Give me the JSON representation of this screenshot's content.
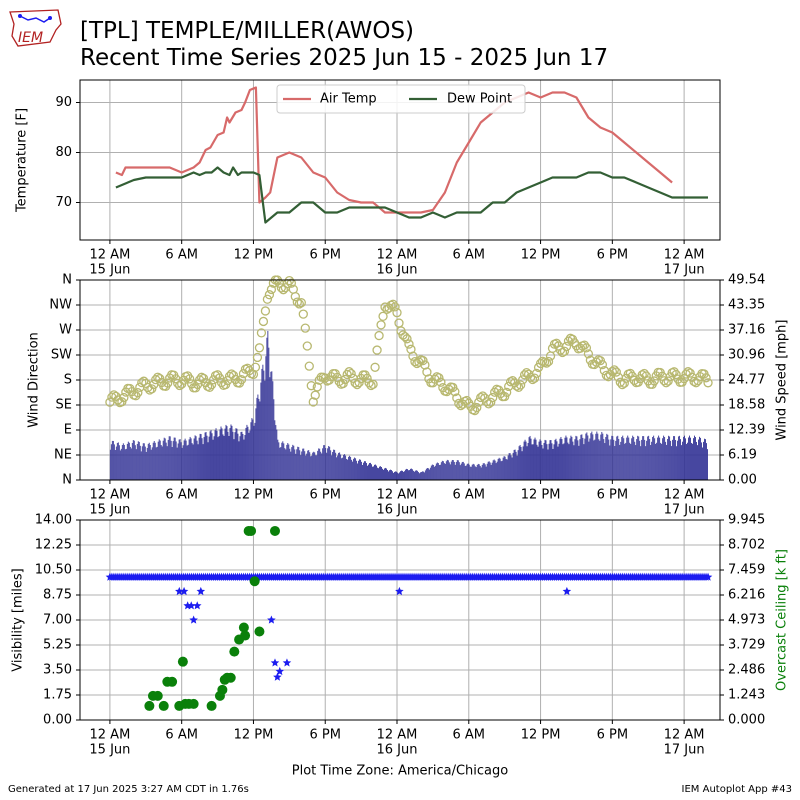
{
  "header": {
    "line1": "[TPL] TEMPLE/MILLER(AWOS)",
    "line2": "Recent Time Series 2025 Jun 15 - 2025 Jun 17",
    "logo_text": "IEM"
  },
  "footer": {
    "left": "Generated at 17 Jun 2025 3:27 AM CDT in 1.76s",
    "right": "IEM Autoplot App #43"
  },
  "colors": {
    "air_temp": "#d76a6a",
    "dew_point": "#335f35",
    "wind_dir_marker": "#b8b870",
    "wind_speed_bar": "#343496",
    "visibility": "#1c1cf0",
    "ceiling": "#0a800a",
    "grid": "#b0b0b0",
    "ceiling_axis_label": "#0a800a"
  },
  "chart_data": [
    {
      "type": "line",
      "ylabel": "Temperature [F]",
      "ylim": [
        62.5,
        94.5
      ],
      "yticks": [
        70,
        80,
        90
      ],
      "xlim": [
        -2.5,
        51
      ],
      "x_units": "hours since 15 Jun 12 AM",
      "xtick_labels": [
        {
          "x": 0,
          "line1": "12 AM",
          "line2": "15 Jun"
        },
        {
          "x": 6,
          "line1": "6 AM",
          "line2": ""
        },
        {
          "x": 12,
          "line1": "12 PM",
          "line2": ""
        },
        {
          "x": 18,
          "line1": "6 PM",
          "line2": ""
        },
        {
          "x": 24,
          "line1": "12 AM",
          "line2": "16 Jun"
        },
        {
          "x": 30,
          "line1": "6 AM",
          "line2": ""
        },
        {
          "x": 36,
          "line1": "12 PM",
          "line2": ""
        },
        {
          "x": 42,
          "line1": "6 PM",
          "line2": ""
        },
        {
          "x": 48,
          "line1": "12 AM",
          "line2": "17 Jun"
        }
      ],
      "grid": true,
      "legend_placement": "top-center",
      "series": [
        {
          "name": "Air Temp",
          "points": [
            [
              0.5,
              76
            ],
            [
              1,
              75.5
            ],
            [
              1.3,
              77
            ],
            [
              2,
              77
            ],
            [
              3,
              77
            ],
            [
              4,
              77
            ],
            [
              5,
              77
            ],
            [
              6,
              76
            ],
            [
              7,
              77
            ],
            [
              7.5,
              78
            ],
            [
              8,
              80.5
            ],
            [
              8.4,
              81
            ],
            [
              9,
              83.5
            ],
            [
              9.5,
              84
            ],
            [
              9.8,
              87
            ],
            [
              10,
              86
            ],
            [
              10.5,
              88
            ],
            [
              11,
              88.5
            ],
            [
              11.3,
              90
            ],
            [
              11.7,
              92.5
            ],
            [
              12.2,
              93
            ],
            [
              12.5,
              70
            ],
            [
              13,
              71
            ],
            [
              13.4,
              72
            ],
            [
              14,
              79
            ],
            [
              15,
              80
            ],
            [
              16,
              79
            ],
            [
              17,
              76
            ],
            [
              18,
              75
            ],
            [
              19,
              72
            ],
            [
              20,
              70.5
            ],
            [
              21,
              70
            ],
            [
              22,
              70
            ],
            [
              23,
              68
            ],
            [
              24,
              68
            ],
            [
              25,
              68
            ],
            [
              26,
              68
            ],
            [
              27,
              68.5
            ],
            [
              28,
              72
            ],
            [
              29,
              78
            ],
            [
              30,
              82
            ],
            [
              31,
              86
            ],
            [
              32,
              88
            ],
            [
              33,
              90
            ],
            [
              34,
              91
            ],
            [
              35,
              92
            ],
            [
              36,
              91
            ],
            [
              37,
              92
            ],
            [
              38,
              92
            ],
            [
              39,
              91
            ],
            [
              40,
              87
            ],
            [
              41,
              85
            ],
            [
              42,
              84
            ],
            [
              43,
              82
            ],
            [
              44,
              80
            ],
            [
              45,
              78
            ],
            [
              46,
              76
            ],
            [
              47,
              74
            ]
          ]
        },
        {
          "name": "Dew Point",
          "points": [
            [
              0.5,
              73
            ],
            [
              1,
              73.5
            ],
            [
              2,
              74.5
            ],
            [
              3,
              75
            ],
            [
              4,
              75
            ],
            [
              5,
              75
            ],
            [
              6,
              75
            ],
            [
              7,
              76
            ],
            [
              7.5,
              75.5
            ],
            [
              8,
              76
            ],
            [
              8.5,
              76
            ],
            [
              9,
              77
            ],
            [
              9.5,
              76
            ],
            [
              10,
              75.5
            ],
            [
              10.3,
              77
            ],
            [
              10.7,
              75.5
            ],
            [
              11,
              76
            ],
            [
              11.3,
              76
            ],
            [
              12,
              76
            ],
            [
              12.5,
              75.5
            ],
            [
              13,
              66
            ],
            [
              14,
              68
            ],
            [
              15,
              68
            ],
            [
              16,
              70
            ],
            [
              17,
              70
            ],
            [
              18,
              68
            ],
            [
              19,
              68
            ],
            [
              20,
              69
            ],
            [
              21,
              69
            ],
            [
              22,
              69
            ],
            [
              23,
              69
            ],
            [
              24,
              68
            ],
            [
              25,
              67
            ],
            [
              26,
              67
            ],
            [
              27,
              68
            ],
            [
              28,
              67
            ],
            [
              29,
              68
            ],
            [
              30,
              68
            ],
            [
              31,
              68
            ],
            [
              32,
              70
            ],
            [
              33,
              70
            ],
            [
              34,
              72
            ],
            [
              35,
              73
            ],
            [
              36,
              74
            ],
            [
              37,
              75
            ],
            [
              38,
              75
            ],
            [
              39,
              75
            ],
            [
              40,
              76
            ],
            [
              41,
              76
            ],
            [
              42,
              75
            ],
            [
              43,
              75
            ],
            [
              44,
              74
            ],
            [
              45,
              73
            ],
            [
              46,
              72
            ],
            [
              47,
              71
            ],
            [
              48,
              71
            ],
            [
              49,
              71
            ],
            [
              50,
              71
            ]
          ]
        }
      ]
    },
    {
      "type": "bar",
      "ylabel": "Wind Direction",
      "y2label": "Wind Speed [mph]",
      "ylim": [
        0,
        360
      ],
      "yticks": [
        {
          "v": 0,
          "label": "N"
        },
        {
          "v": 45,
          "label": "NE"
        },
        {
          "v": 90,
          "label": "E"
        },
        {
          "v": 135,
          "label": "SE"
        },
        {
          "v": 180,
          "label": "S"
        },
        {
          "v": 225,
          "label": "SW"
        },
        {
          "v": 270,
          "label": "W"
        },
        {
          "v": 315,
          "label": "NW"
        },
        {
          "v": 360,
          "label": "N"
        }
      ],
      "y2lim": [
        0,
        49.54
      ],
      "y2ticks": [
        "0.00",
        "6.19",
        "12.39",
        "18.58",
        "24.77",
        "30.96",
        "37.16",
        "43.35",
        "49.54"
      ],
      "xlim": [
        -2.5,
        51
      ],
      "grid": true,
      "wind_speed_mph": [
        [
          0,
          10
        ],
        [
          1,
          9
        ],
        [
          2,
          10
        ],
        [
          3,
          9
        ],
        [
          4,
          10
        ],
        [
          5,
          11
        ],
        [
          6,
          10
        ],
        [
          7,
          11
        ],
        [
          8,
          12
        ],
        [
          9,
          13
        ],
        [
          10,
          14
        ],
        [
          11,
          12
        ],
        [
          12,
          16
        ],
        [
          12.8,
          30
        ],
        [
          13.2,
          38
        ],
        [
          14,
          10
        ],
        [
          15,
          9
        ],
        [
          16,
          8
        ],
        [
          17,
          7
        ],
        [
          18,
          9
        ],
        [
          19,
          7
        ],
        [
          20,
          6
        ],
        [
          21,
          5
        ],
        [
          22,
          4
        ],
        [
          23,
          3
        ],
        [
          24,
          2
        ],
        [
          25,
          3
        ],
        [
          26,
          2
        ],
        [
          27,
          4
        ],
        [
          28,
          5
        ],
        [
          29,
          5
        ],
        [
          30,
          4
        ],
        [
          31,
          4
        ],
        [
          32,
          5
        ],
        [
          33,
          6
        ],
        [
          34,
          8
        ],
        [
          35,
          11
        ],
        [
          36,
          10
        ],
        [
          37,
          10
        ],
        [
          38,
          11
        ],
        [
          39,
          11
        ],
        [
          40,
          12
        ],
        [
          41,
          12
        ],
        [
          42,
          11
        ],
        [
          43,
          11
        ],
        [
          44,
          11
        ],
        [
          45,
          11
        ],
        [
          46,
          11
        ],
        [
          47,
          11
        ],
        [
          48,
          11
        ],
        [
          49,
          11
        ],
        [
          50,
          10
        ]
      ],
      "wind_direction_deg": [
        [
          0,
          140
        ],
        [
          1,
          150
        ],
        [
          2,
          160
        ],
        [
          3,
          170
        ],
        [
          4,
          175
        ],
        [
          5,
          180
        ],
        [
          6,
          180
        ],
        [
          7,
          175
        ],
        [
          8,
          175
        ],
        [
          9,
          180
        ],
        [
          10,
          180
        ],
        [
          11,
          185
        ],
        [
          12,
          200
        ],
        [
          12.5,
          230
        ],
        [
          12.8,
          275
        ],
        [
          13.2,
          340
        ],
        [
          14,
          355
        ],
        [
          15,
          350
        ],
        [
          16,
          320
        ],
        [
          17,
          150
        ],
        [
          18,
          190
        ],
        [
          19,
          180
        ],
        [
          20,
          185
        ],
        [
          21,
          180
        ],
        [
          22,
          180
        ],
        [
          23,
          320
        ],
        [
          24,
          300
        ],
        [
          25,
          235
        ],
        [
          26,
          210
        ],
        [
          27,
          180
        ],
        [
          28,
          170
        ],
        [
          29,
          150
        ],
        [
          30,
          130
        ],
        [
          31,
          140
        ],
        [
          32,
          150
        ],
        [
          33,
          160
        ],
        [
          34,
          175
        ],
        [
          35,
          185
        ],
        [
          36,
          200
        ],
        [
          37,
          235
        ],
        [
          38,
          240
        ],
        [
          39,
          250
        ],
        [
          40,
          225
        ],
        [
          41,
          205
        ],
        [
          42,
          190
        ],
        [
          43,
          180
        ],
        [
          44,
          185
        ],
        [
          45,
          180
        ],
        [
          46,
          185
        ],
        [
          47,
          185
        ],
        [
          48,
          185
        ],
        [
          49,
          185
        ],
        [
          50,
          180
        ]
      ]
    },
    {
      "type": "scatter",
      "ylabel": "Visibility [miles]",
      "y2label": "Overcast Ceiling [k ft]",
      "ylim": [
        0,
        14
      ],
      "yticks": [
        "0.00",
        "1.75",
        "3.50",
        "5.25",
        "7.00",
        "8.75",
        "10.50",
        "12.25",
        "14.00"
      ],
      "y2lim": [
        0,
        9.945
      ],
      "y2ticks": [
        "0.000",
        "1.243",
        "2.486",
        "3.729",
        "4.973",
        "6.216",
        "7.459",
        "8.702",
        "9.945"
      ],
      "xlim": [
        -2.5,
        51
      ],
      "xlabel": "Plot Time Zone: America/Chicago",
      "grid": true,
      "visibility_miles": [
        [
          0,
          10
        ],
        [
          2,
          10
        ],
        [
          4,
          10
        ],
        [
          5,
          10
        ],
        [
          5.8,
          9
        ],
        [
          6.2,
          9
        ],
        [
          6.5,
          8
        ],
        [
          6.8,
          8
        ],
        [
          7,
          7
        ],
        [
          7.3,
          8
        ],
        [
          7.6,
          9
        ],
        [
          8,
          10
        ],
        [
          10,
          10
        ],
        [
          12,
          10
        ],
        [
          13,
          10
        ],
        [
          13.5,
          7
        ],
        [
          13.8,
          4
        ],
        [
          14,
          3
        ],
        [
          14.2,
          3.4
        ],
        [
          14.8,
          4
        ],
        [
          15,
          10
        ],
        [
          18,
          10
        ],
        [
          20,
          10
        ],
        [
          22,
          10
        ],
        [
          24,
          10
        ],
        [
          24.2,
          9
        ],
        [
          26,
          10
        ],
        [
          28,
          10
        ],
        [
          30,
          10
        ],
        [
          32,
          10
        ],
        [
          34,
          10
        ],
        [
          36,
          10
        ],
        [
          38.2,
          9
        ],
        [
          40,
          10
        ],
        [
          42,
          10
        ],
        [
          44,
          10
        ],
        [
          46,
          10
        ],
        [
          48,
          10
        ],
        [
          50,
          10
        ]
      ],
      "ceiling_kft": [
        [
          3.3,
          0.7
        ],
        [
          3.6,
          1.2
        ],
        [
          4,
          1.2
        ],
        [
          4.5,
          0.7
        ],
        [
          4.8,
          1.9
        ],
        [
          5.2,
          1.9
        ],
        [
          5.8,
          0.7
        ],
        [
          6.1,
          2.9
        ],
        [
          6.3,
          0.8
        ],
        [
          6.6,
          0.8
        ],
        [
          7,
          0.8
        ],
        [
          8.5,
          0.7
        ],
        [
          9.2,
          1.2
        ],
        [
          9.4,
          1.5
        ],
        [
          9.6,
          2.0
        ],
        [
          9.8,
          2.1
        ],
        [
          10.1,
          2.1
        ],
        [
          10.4,
          3.4
        ],
        [
          10.8,
          4.0
        ],
        [
          11.2,
          4.6
        ],
        [
          11.3,
          4.2
        ],
        [
          11.6,
          9.4
        ],
        [
          11.8,
          9.4
        ],
        [
          12.1,
          6.9
        ],
        [
          12.5,
          4.4
        ],
        [
          13.8,
          9.4
        ]
      ]
    }
  ]
}
